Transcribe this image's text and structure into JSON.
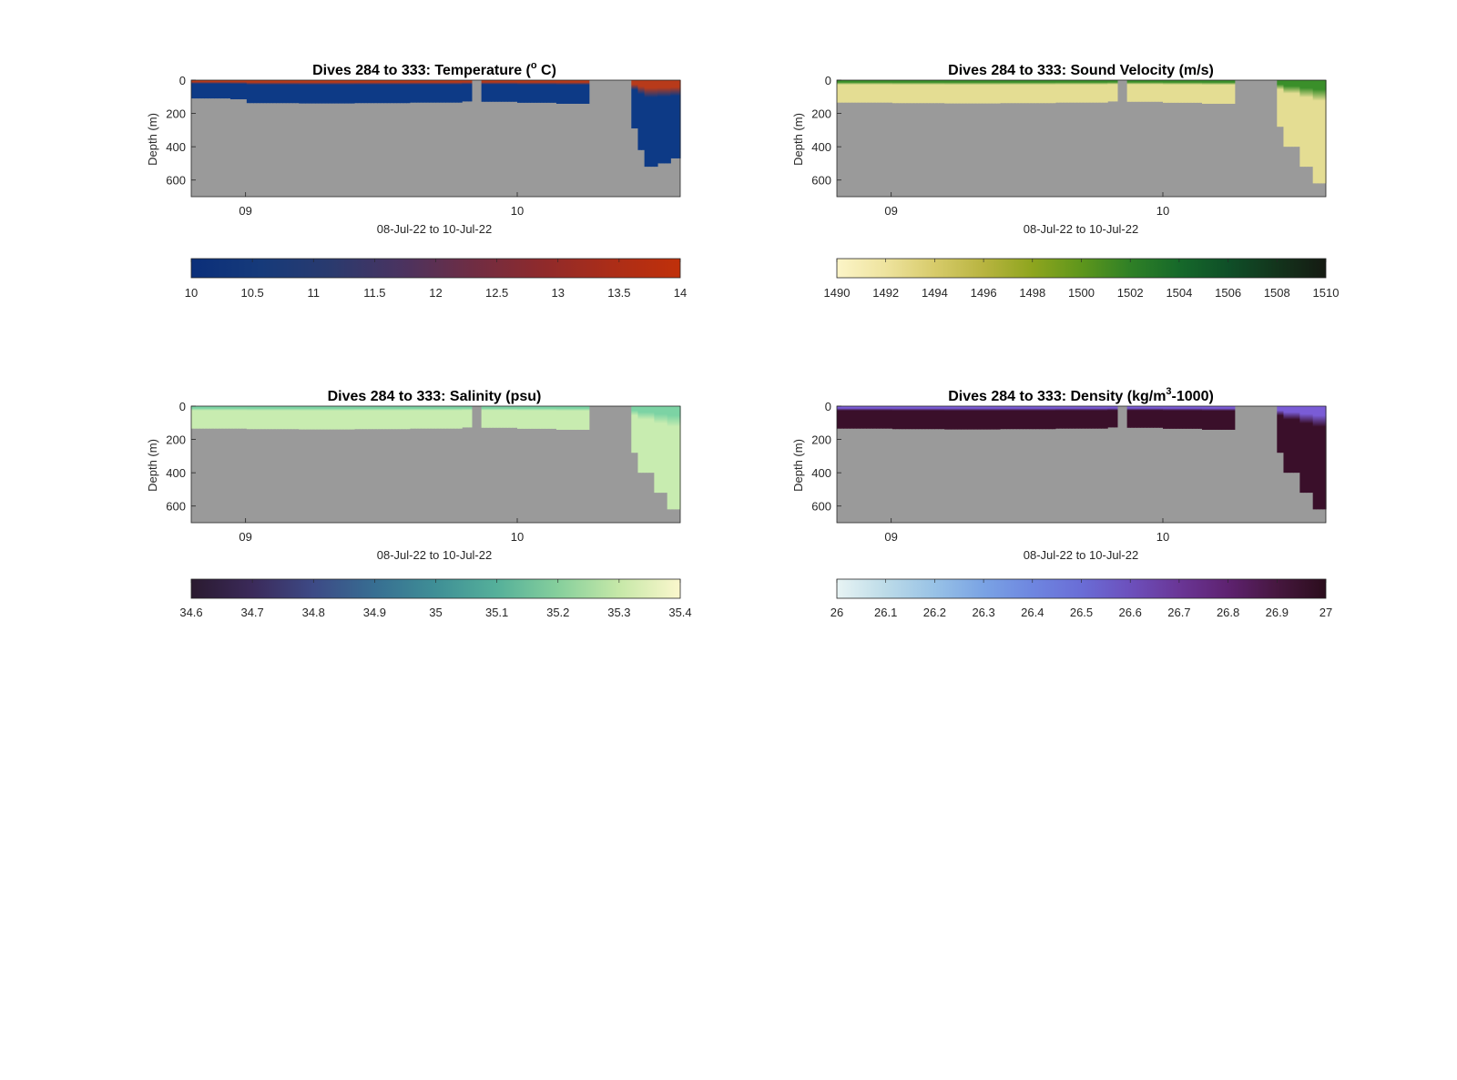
{
  "chart_data": [
    {
      "type": "heatmap",
      "variable": "temperature",
      "title": "Dives 284 to 333: Temperature (",
      "title_sup": "o",
      "title_end": " C)",
      "ylabel": "Depth (m)",
      "xlabel": "08-Jul-22 to 10-Jul-22",
      "x_range_days": [
        8.8,
        10.6
      ],
      "y_ticks": [
        "0",
        "200",
        "400",
        "600"
      ],
      "y_range": [
        0,
        700
      ],
      "y_reversed": true,
      "x_ticks": [
        {
          "label": "09",
          "day": 9
        },
        {
          "label": "10",
          "day": 10
        }
      ],
      "colorbar_ticks": [
        "10",
        "10.5",
        "11",
        "11.5",
        "12",
        "12.5",
        "13",
        "13.5",
        "14"
      ],
      "colormap": [
        "#0b2f7a",
        "#163a7a",
        "#2a3a6e",
        "#4a3360",
        "#6e2d44",
        "#8e2a2c",
        "#ab2d18",
        "#c0300a"
      ],
      "no_data_color": "#9a9a9a",
      "surface_color": "#b83a1a",
      "deep_color": "#0d3a86",
      "gaps_days": [
        [
          9.835,
          9.87
        ],
        [
          10.27,
          10.415
        ]
      ],
      "bottom_depth_profile": [
        [
          8.8,
          110
        ],
        [
          8.94,
          115
        ],
        [
          9.0,
          138
        ],
        [
          9.2,
          140
        ],
        [
          9.4,
          138
        ],
        [
          9.6,
          135
        ],
        [
          9.8,
          128
        ],
        [
          9.835,
          125
        ],
        [
          9.87,
          130
        ],
        [
          10.0,
          136
        ],
        [
          10.15,
          142
        ],
        [
          10.27,
          150
        ],
        [
          10.415,
          290
        ],
        [
          10.45,
          420
        ],
        [
          10.47,
          520
        ],
        [
          10.52,
          500
        ],
        [
          10.56,
          470
        ],
        [
          10.6,
          420
        ]
      ]
    },
    {
      "type": "heatmap",
      "variable": "sound_velocity",
      "title": "Dives 284 to 333: Sound Velocity (m/s)",
      "ylabel": "Depth (m)",
      "xlabel": "08-Jul-22 to 10-Jul-22",
      "x_range_days": [
        8.8,
        10.6
      ],
      "y_ticks": [
        "0",
        "200",
        "400",
        "600"
      ],
      "y_range": [
        0,
        700
      ],
      "y_reversed": true,
      "x_ticks": [
        {
          "label": "09",
          "day": 9
        },
        {
          "label": "10",
          "day": 10
        }
      ],
      "colorbar_ticks": [
        "1490",
        "1492",
        "1494",
        "1496",
        "1498",
        "1500",
        "1502",
        "1504",
        "1506",
        "1508",
        "1510"
      ],
      "colormap": [
        "#fcf5c8",
        "#eee39e",
        "#d7cb6a",
        "#b8b440",
        "#8ea51e",
        "#5e961c",
        "#2f8026",
        "#16692a",
        "#0f4f28",
        "#13341c",
        "#151a12"
      ],
      "no_data_color": "#9a9a9a",
      "surface_color": "#3a8f2a",
      "deep_color": "#e4dd93",
      "gaps_days": [
        [
          9.835,
          9.87
        ],
        [
          10.27,
          10.415
        ]
      ],
      "bottom_depth_profile": [
        [
          8.8,
          135
        ],
        [
          9.0,
          138
        ],
        [
          9.2,
          140
        ],
        [
          9.4,
          138
        ],
        [
          9.6,
          135
        ],
        [
          9.8,
          128
        ],
        [
          9.835,
          125
        ],
        [
          9.87,
          130
        ],
        [
          10.0,
          136
        ],
        [
          10.15,
          142
        ],
        [
          10.27,
          150
        ],
        [
          10.415,
          280
        ],
        [
          10.45,
          400
        ],
        [
          10.5,
          520
        ],
        [
          10.55,
          620
        ],
        [
          10.6,
          700
        ]
      ]
    },
    {
      "type": "heatmap",
      "variable": "salinity",
      "title": "Dives 284 to 333: Salinity (psu)",
      "ylabel": "Depth (m)",
      "xlabel": "08-Jul-22 to 10-Jul-22",
      "x_range_days": [
        8.8,
        10.6
      ],
      "y_ticks": [
        "0",
        "200",
        "400",
        "600"
      ],
      "y_range": [
        0,
        700
      ],
      "y_reversed": true,
      "x_ticks": [
        {
          "label": "09",
          "day": 9
        },
        {
          "label": "10",
          "day": 10
        }
      ],
      "colorbar_ticks": [
        "34.6",
        "34.7",
        "34.8",
        "34.9",
        "35",
        "35.1",
        "35.2",
        "35.3",
        "35.4"
      ],
      "colormap": [
        "#2a1a2f",
        "#3b2a5a",
        "#3d4a86",
        "#376e92",
        "#3f8f96",
        "#55b09a",
        "#86cf9c",
        "#c6e8a8",
        "#fbf7cd"
      ],
      "no_data_color": "#9a9a9a",
      "surface_color": "#7cd3a4",
      "deep_color": "#c8ecb0",
      "gaps_days": [
        [
          9.835,
          9.87
        ],
        [
          10.27,
          10.415
        ]
      ],
      "bottom_depth_profile": [
        [
          8.8,
          135
        ],
        [
          9.0,
          138
        ],
        [
          9.2,
          140
        ],
        [
          9.4,
          138
        ],
        [
          9.6,
          135
        ],
        [
          9.8,
          128
        ],
        [
          9.835,
          125
        ],
        [
          9.87,
          130
        ],
        [
          10.0,
          136
        ],
        [
          10.15,
          142
        ],
        [
          10.27,
          150
        ],
        [
          10.415,
          280
        ],
        [
          10.45,
          400
        ],
        [
          10.5,
          520
        ],
        [
          10.55,
          620
        ],
        [
          10.6,
          700
        ]
      ]
    },
    {
      "type": "heatmap",
      "variable": "density",
      "title": "Dives 284 to 333: Density (kg/m",
      "title_sup": "3",
      "title_end": "-1000)",
      "ylabel": "Depth (m)",
      "xlabel": "08-Jul-22 to 10-Jul-22",
      "x_range_days": [
        8.8,
        10.6
      ],
      "y_ticks": [
        "0",
        "200",
        "400",
        "600"
      ],
      "y_range": [
        0,
        700
      ],
      "y_reversed": true,
      "x_ticks": [
        {
          "label": "09",
          "day": 9
        },
        {
          "label": "10",
          "day": 10
        }
      ],
      "colorbar_ticks": [
        "26",
        "26.1",
        "26.2",
        "26.3",
        "26.4",
        "26.5",
        "26.6",
        "26.7",
        "26.8",
        "26.9",
        "27"
      ],
      "colormap": [
        "#e8f4f4",
        "#bcdbe8",
        "#98c2e6",
        "#7aa3e4",
        "#6e86e0",
        "#6a6dd6",
        "#6c50bc",
        "#6a3696",
        "#5e2270",
        "#46173f",
        "#2b0d1c"
      ],
      "no_data_color": "#9a9a9a",
      "surface_color": "#7a5cd6",
      "deep_color": "#3a0f2a",
      "gaps_days": [
        [
          9.835,
          9.87
        ],
        [
          10.27,
          10.415
        ]
      ],
      "bottom_depth_profile": [
        [
          8.8,
          135
        ],
        [
          9.0,
          138
        ],
        [
          9.2,
          140
        ],
        [
          9.4,
          138
        ],
        [
          9.6,
          135
        ],
        [
          9.8,
          128
        ],
        [
          9.835,
          125
        ],
        [
          9.87,
          130
        ],
        [
          10.0,
          136
        ],
        [
          10.15,
          142
        ],
        [
          10.27,
          150
        ],
        [
          10.415,
          280
        ],
        [
          10.45,
          400
        ],
        [
          10.5,
          520
        ],
        [
          10.55,
          620
        ],
        [
          10.6,
          700
        ]
      ]
    }
  ]
}
